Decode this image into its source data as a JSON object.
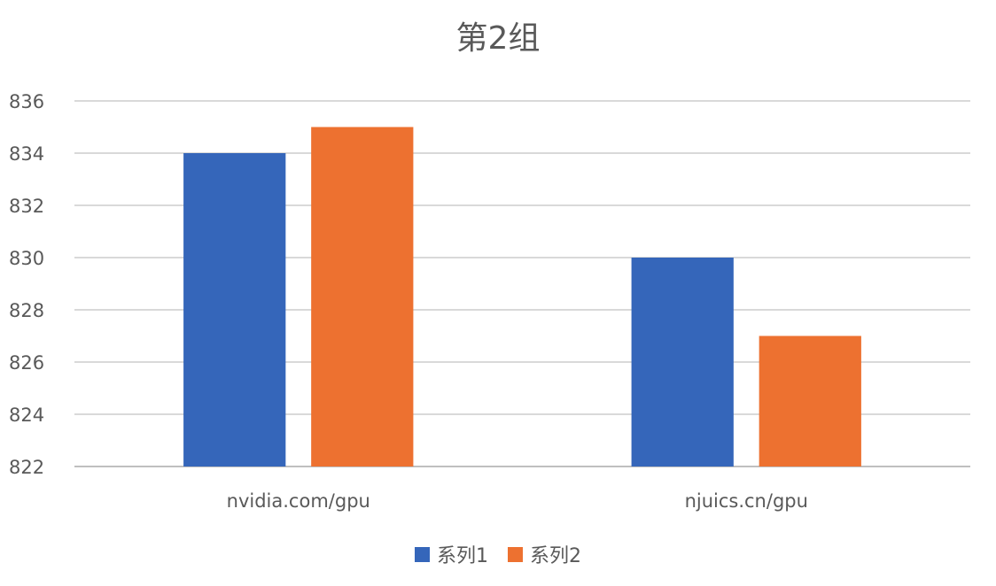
{
  "chart_data": {
    "type": "bar",
    "title": "第2组",
    "categories": [
      "nvidia.com/gpu",
      "njuics.cn/gpu"
    ],
    "series": [
      {
        "name": "系列1",
        "color": "#3566BA",
        "values": [
          834,
          830
        ]
      },
      {
        "name": "系列2",
        "color": "#ED7130",
        "values": [
          835,
          827
        ]
      }
    ],
    "ylim": [
      822,
      836
    ],
    "yticks": [
      822,
      824,
      826,
      828,
      830,
      832,
      834,
      836
    ],
    "grid": true,
    "legend_position": "bottom",
    "xlabel": "",
    "ylabel": ""
  }
}
